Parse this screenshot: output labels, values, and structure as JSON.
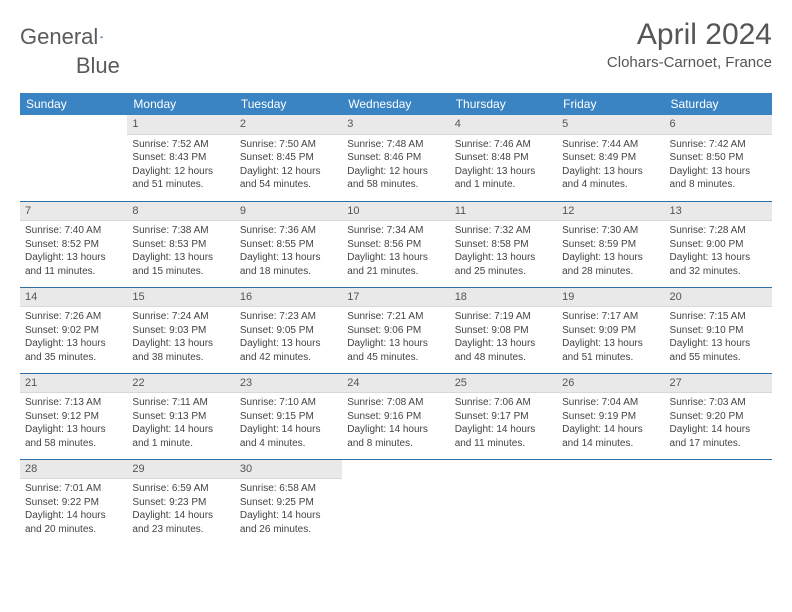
{
  "logo": {
    "word1": "General",
    "word2": "Blue"
  },
  "title": {
    "month": "April 2024",
    "location": "Clohars-Carnoet, France"
  },
  "colors": {
    "header_bg": "#3a84c4",
    "daynum_bg": "#e9e9e9",
    "row_border": "#2f6fa8",
    "text": "#444444",
    "logo_gray": "#5a5a5a",
    "logo_blue": "#2f6fa8"
  },
  "day_headers": [
    "Sunday",
    "Monday",
    "Tuesday",
    "Wednesday",
    "Thursday",
    "Friday",
    "Saturday"
  ],
  "weeks": [
    [
      {
        "n": "",
        "sr": "",
        "ss": "",
        "dl": ""
      },
      {
        "n": "1",
        "sr": "Sunrise: 7:52 AM",
        "ss": "Sunset: 8:43 PM",
        "dl": "Daylight: 12 hours and 51 minutes."
      },
      {
        "n": "2",
        "sr": "Sunrise: 7:50 AM",
        "ss": "Sunset: 8:45 PM",
        "dl": "Daylight: 12 hours and 54 minutes."
      },
      {
        "n": "3",
        "sr": "Sunrise: 7:48 AM",
        "ss": "Sunset: 8:46 PM",
        "dl": "Daylight: 12 hours and 58 minutes."
      },
      {
        "n": "4",
        "sr": "Sunrise: 7:46 AM",
        "ss": "Sunset: 8:48 PM",
        "dl": "Daylight: 13 hours and 1 minute."
      },
      {
        "n": "5",
        "sr": "Sunrise: 7:44 AM",
        "ss": "Sunset: 8:49 PM",
        "dl": "Daylight: 13 hours and 4 minutes."
      },
      {
        "n": "6",
        "sr": "Sunrise: 7:42 AM",
        "ss": "Sunset: 8:50 PM",
        "dl": "Daylight: 13 hours and 8 minutes."
      }
    ],
    [
      {
        "n": "7",
        "sr": "Sunrise: 7:40 AM",
        "ss": "Sunset: 8:52 PM",
        "dl": "Daylight: 13 hours and 11 minutes."
      },
      {
        "n": "8",
        "sr": "Sunrise: 7:38 AM",
        "ss": "Sunset: 8:53 PM",
        "dl": "Daylight: 13 hours and 15 minutes."
      },
      {
        "n": "9",
        "sr": "Sunrise: 7:36 AM",
        "ss": "Sunset: 8:55 PM",
        "dl": "Daylight: 13 hours and 18 minutes."
      },
      {
        "n": "10",
        "sr": "Sunrise: 7:34 AM",
        "ss": "Sunset: 8:56 PM",
        "dl": "Daylight: 13 hours and 21 minutes."
      },
      {
        "n": "11",
        "sr": "Sunrise: 7:32 AM",
        "ss": "Sunset: 8:58 PM",
        "dl": "Daylight: 13 hours and 25 minutes."
      },
      {
        "n": "12",
        "sr": "Sunrise: 7:30 AM",
        "ss": "Sunset: 8:59 PM",
        "dl": "Daylight: 13 hours and 28 minutes."
      },
      {
        "n": "13",
        "sr": "Sunrise: 7:28 AM",
        "ss": "Sunset: 9:00 PM",
        "dl": "Daylight: 13 hours and 32 minutes."
      }
    ],
    [
      {
        "n": "14",
        "sr": "Sunrise: 7:26 AM",
        "ss": "Sunset: 9:02 PM",
        "dl": "Daylight: 13 hours and 35 minutes."
      },
      {
        "n": "15",
        "sr": "Sunrise: 7:24 AM",
        "ss": "Sunset: 9:03 PM",
        "dl": "Daylight: 13 hours and 38 minutes."
      },
      {
        "n": "16",
        "sr": "Sunrise: 7:23 AM",
        "ss": "Sunset: 9:05 PM",
        "dl": "Daylight: 13 hours and 42 minutes."
      },
      {
        "n": "17",
        "sr": "Sunrise: 7:21 AM",
        "ss": "Sunset: 9:06 PM",
        "dl": "Daylight: 13 hours and 45 minutes."
      },
      {
        "n": "18",
        "sr": "Sunrise: 7:19 AM",
        "ss": "Sunset: 9:08 PM",
        "dl": "Daylight: 13 hours and 48 minutes."
      },
      {
        "n": "19",
        "sr": "Sunrise: 7:17 AM",
        "ss": "Sunset: 9:09 PM",
        "dl": "Daylight: 13 hours and 51 minutes."
      },
      {
        "n": "20",
        "sr": "Sunrise: 7:15 AM",
        "ss": "Sunset: 9:10 PM",
        "dl": "Daylight: 13 hours and 55 minutes."
      }
    ],
    [
      {
        "n": "21",
        "sr": "Sunrise: 7:13 AM",
        "ss": "Sunset: 9:12 PM",
        "dl": "Daylight: 13 hours and 58 minutes."
      },
      {
        "n": "22",
        "sr": "Sunrise: 7:11 AM",
        "ss": "Sunset: 9:13 PM",
        "dl": "Daylight: 14 hours and 1 minute."
      },
      {
        "n": "23",
        "sr": "Sunrise: 7:10 AM",
        "ss": "Sunset: 9:15 PM",
        "dl": "Daylight: 14 hours and 4 minutes."
      },
      {
        "n": "24",
        "sr": "Sunrise: 7:08 AM",
        "ss": "Sunset: 9:16 PM",
        "dl": "Daylight: 14 hours and 8 minutes."
      },
      {
        "n": "25",
        "sr": "Sunrise: 7:06 AM",
        "ss": "Sunset: 9:17 PM",
        "dl": "Daylight: 14 hours and 11 minutes."
      },
      {
        "n": "26",
        "sr": "Sunrise: 7:04 AM",
        "ss": "Sunset: 9:19 PM",
        "dl": "Daylight: 14 hours and 14 minutes."
      },
      {
        "n": "27",
        "sr": "Sunrise: 7:03 AM",
        "ss": "Sunset: 9:20 PM",
        "dl": "Daylight: 14 hours and 17 minutes."
      }
    ],
    [
      {
        "n": "28",
        "sr": "Sunrise: 7:01 AM",
        "ss": "Sunset: 9:22 PM",
        "dl": "Daylight: 14 hours and 20 minutes."
      },
      {
        "n": "29",
        "sr": "Sunrise: 6:59 AM",
        "ss": "Sunset: 9:23 PM",
        "dl": "Daylight: 14 hours and 23 minutes."
      },
      {
        "n": "30",
        "sr": "Sunrise: 6:58 AM",
        "ss": "Sunset: 9:25 PM",
        "dl": "Daylight: 14 hours and 26 minutes."
      },
      {
        "n": "",
        "sr": "",
        "ss": "",
        "dl": ""
      },
      {
        "n": "",
        "sr": "",
        "ss": "",
        "dl": ""
      },
      {
        "n": "",
        "sr": "",
        "ss": "",
        "dl": ""
      },
      {
        "n": "",
        "sr": "",
        "ss": "",
        "dl": ""
      }
    ]
  ]
}
